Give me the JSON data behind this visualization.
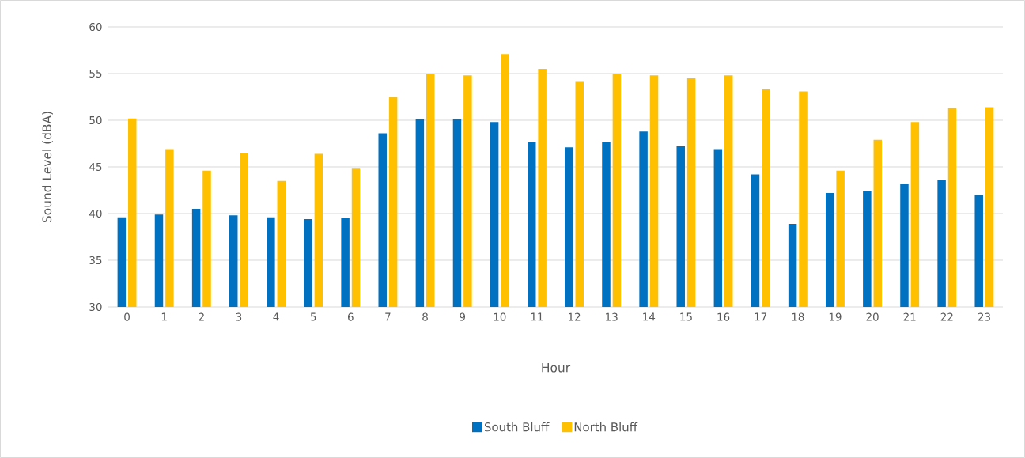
{
  "chart_data": {
    "type": "bar",
    "xlabel": "Hour",
    "ylabel": "Sound Level (dBA)",
    "categories": [
      "0",
      "1",
      "2",
      "3",
      "4",
      "5",
      "6",
      "7",
      "8",
      "9",
      "10",
      "11",
      "12",
      "13",
      "14",
      "15",
      "16",
      "17",
      "18",
      "19",
      "20",
      "21",
      "22",
      "23"
    ],
    "series": [
      {
        "name": "South Bluff",
        "color": "#0070c0",
        "values": [
          39.6,
          39.9,
          40.5,
          39.8,
          39.6,
          39.4,
          39.5,
          48.6,
          50.1,
          50.1,
          49.8,
          47.7,
          47.1,
          47.7,
          48.8,
          47.2,
          46.9,
          44.2,
          38.9,
          42.2,
          42.4,
          43.2,
          43.6,
          42.0
        ]
      },
      {
        "name": "North Bluff",
        "color": "#ffc000",
        "values": [
          50.2,
          46.9,
          44.6,
          46.5,
          43.5,
          46.4,
          44.8,
          52.5,
          55.0,
          54.8,
          57.1,
          55.5,
          54.1,
          55.0,
          54.8,
          54.5,
          54.8,
          53.3,
          53.1,
          44.6,
          47.9,
          49.8,
          51.3,
          51.4
        ]
      }
    ],
    "ylim": [
      30,
      60
    ],
    "yticks": [
      30,
      35,
      40,
      45,
      50,
      55,
      60
    ],
    "grid": "y",
    "legend": "bottom"
  }
}
